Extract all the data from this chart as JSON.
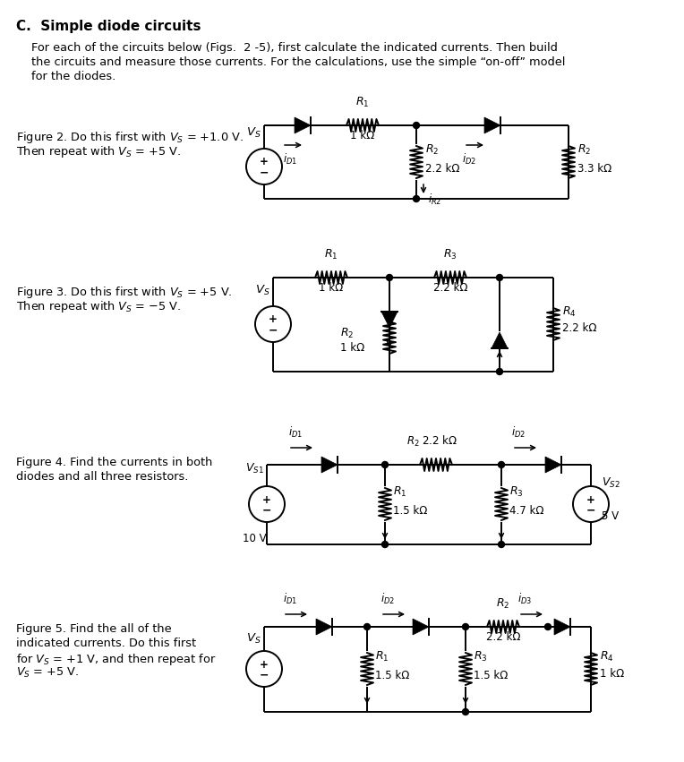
{
  "bg_color": "#ffffff",
  "text_color": "#1a1a1a",
  "line_color": "#000000",
  "title": "C.  Simple diode circuits",
  "intro_line1": "For each of the circuits below (Figs.  2 -5), first calculate the indicated currents. Then build",
  "intro_line2": "the circuits and measure those currents. For the calculations, use the simple “on-off” model",
  "intro_line3": "for the diodes.",
  "fig2_text1": "Figure 2. Do this first with $V_S$ = +1.0 V.",
  "fig2_text2": "Then repeat with $V_S$ = +5 V.",
  "fig3_text1": "Figure 3. Do this first with $V_S$ = +5 V.",
  "fig3_text2": "Then repeat with $V_S$ = −5 V.",
  "fig4_text1": "Figure 4. Find the currents in both",
  "fig4_text2": "diodes and all three resistors.",
  "fig5_text1": "Figure 5. Find the all of the",
  "fig5_text2": "indicated currents. Do this first",
  "fig5_text3": "for $V_S$ = +1 V, and then repeat for",
  "fig5_text4": "$V_S$ = +5 V."
}
